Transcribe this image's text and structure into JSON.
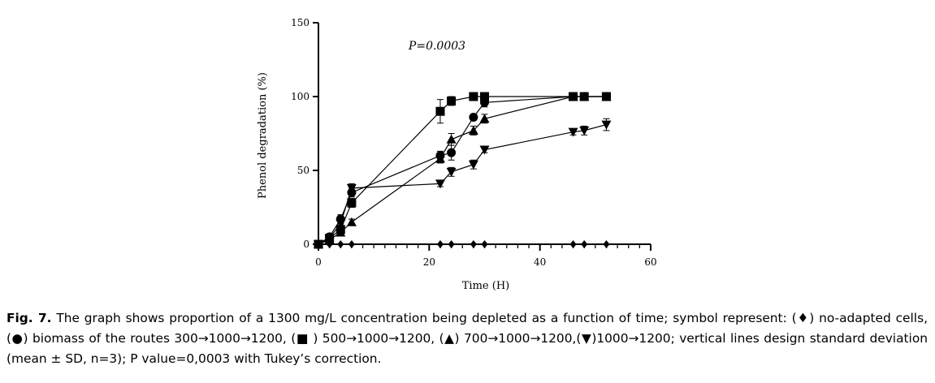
{
  "chart_data": {
    "type": "line",
    "title": "",
    "xlabel": "Time (H)",
    "ylabel": "Phenol degradation (%)",
    "xlim": [
      0,
      60
    ],
    "ylim": [
      0,
      150
    ],
    "x_ticks": [
      0,
      20,
      40,
      60
    ],
    "y_ticks": [
      0,
      50,
      100,
      150
    ],
    "x_tick_labels": [
      "0",
      "20",
      "40",
      "60"
    ],
    "y_tick_labels": [
      "0",
      "50",
      "100",
      "150"
    ],
    "grid": false,
    "annotation": "P=0.0003",
    "series": [
      {
        "name": "no-adapted cells",
        "marker": "diamond",
        "x": [
          0,
          2,
          4,
          6,
          22,
          24,
          28,
          30,
          46,
          48,
          52
        ],
        "y": [
          0,
          0,
          0,
          0,
          0,
          0,
          0,
          0,
          0,
          0,
          0
        ],
        "err": [
          0,
          0,
          0,
          0,
          0,
          0,
          0,
          0,
          0,
          0,
          0
        ]
      },
      {
        "name": "300→1000→1200",
        "marker": "circle",
        "x": [
          0,
          2,
          4,
          6,
          22,
          24,
          28,
          30,
          46,
          48,
          52
        ],
        "y": [
          0,
          5,
          17,
          35,
          60,
          62,
          86,
          96,
          100,
          100,
          100
        ],
        "err": [
          0,
          2,
          3,
          3,
          3,
          5,
          2,
          3,
          0,
          0,
          0
        ]
      },
      {
        "name": "500→1000→1200",
        "marker": "square",
        "x": [
          0,
          2,
          4,
          6,
          22,
          24,
          28,
          30,
          46,
          48,
          52
        ],
        "y": [
          0,
          4,
          10,
          28,
          90,
          97,
          100,
          100,
          100,
          100,
          100
        ],
        "err": [
          0,
          2,
          3,
          3,
          8,
          3,
          0,
          0,
          0,
          0,
          0
        ]
      },
      {
        "name": "700→1000→1200",
        "marker": "triangle-up",
        "x": [
          0,
          2,
          4,
          6,
          22,
          24,
          28,
          30,
          46,
          48,
          52
        ],
        "y": [
          0,
          3,
          8,
          15,
          58,
          71,
          77,
          85,
          100,
          100,
          100
        ],
        "err": [
          0,
          1,
          2,
          2,
          3,
          4,
          3,
          3,
          0,
          0,
          0
        ]
      },
      {
        "name": "1000→1200",
        "marker": "triangle-down",
        "x": [
          0,
          2,
          4,
          6,
          22,
          24,
          28,
          30,
          46,
          48,
          52
        ],
        "y": [
          0,
          4,
          14,
          38,
          41,
          49,
          54,
          64,
          76,
          77,
          81
        ],
        "err": [
          0,
          2,
          3,
          3,
          2,
          3,
          3,
          2,
          2,
          3,
          4
        ]
      }
    ]
  },
  "caption": {
    "label": "Fig. 7.",
    "text": " The graph shows proportion of a 1300 mg/L concentration being depleted as a function of time; symbol represent: (♦) no-adapted cells, (●) biomass of the routes 300→1000→1200, (■ ) 500→1000→1200, (▲) 700→1000→1200,(▼)1000→1200; vertical lines design standard deviation (mean ± SD, n=3); P value=0,0003 with Tukey’s correction."
  }
}
